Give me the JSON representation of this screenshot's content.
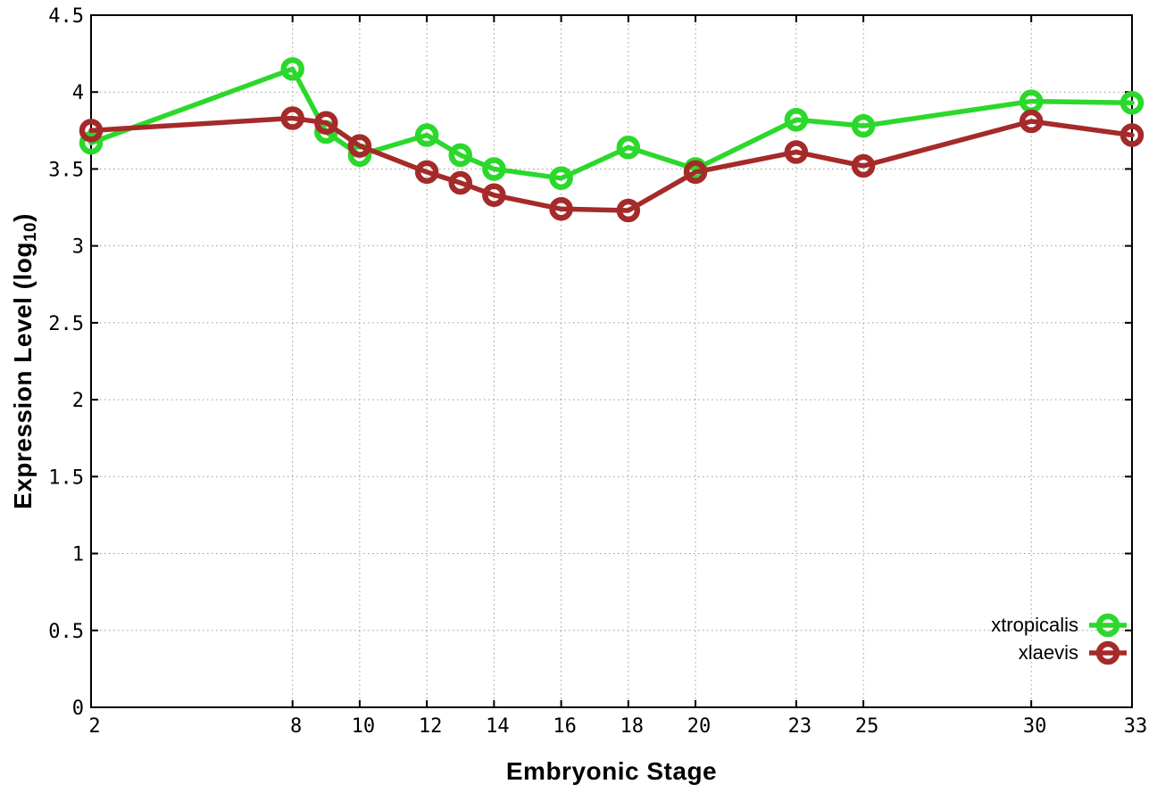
{
  "chart_data": {
    "type": "line",
    "title": "",
    "xlabel": "Embryonic Stage",
    "ylabel": "Expression Level (log10)",
    "ylabel_parts": {
      "prefix": "Expression Level (log",
      "sub": "10",
      "suffix": ")"
    },
    "x": [
      2,
      8,
      9,
      10,
      12,
      13,
      14,
      16,
      18,
      20,
      23,
      25,
      30,
      33
    ],
    "x_tick_labels": [
      "2",
      "8",
      "10",
      "12",
      "14",
      "16",
      "18",
      "20",
      "23",
      "25",
      "30",
      "33"
    ],
    "y_tick_labels": [
      "0",
      "0.5",
      "1",
      "1.5",
      "2",
      "2.5",
      "3",
      "3.5",
      "4",
      "4.5"
    ],
    "xlim": [
      2,
      33
    ],
    "ylim": [
      0,
      4.5
    ],
    "grid": true,
    "grid_style": "dotted",
    "legend_position": "bottom-right",
    "series": [
      {
        "name": "xtropicalis",
        "color": "#2bd82b",
        "values": [
          3.67,
          4.15,
          3.74,
          3.59,
          3.72,
          3.59,
          3.5,
          3.44,
          3.64,
          3.5,
          3.82,
          3.78,
          3.94,
          3.93
        ]
      },
      {
        "name": "xlaevis",
        "color": "#a52a2a",
        "values": [
          3.75,
          3.83,
          3.8,
          3.65,
          3.48,
          3.41,
          3.33,
          3.24,
          3.23,
          3.48,
          3.61,
          3.52,
          3.81,
          3.72
        ]
      }
    ],
    "colors": {
      "background": "#ffffff",
      "border": "#000000",
      "grid": "#9a9a9a",
      "tick_text": "#000000"
    }
  }
}
